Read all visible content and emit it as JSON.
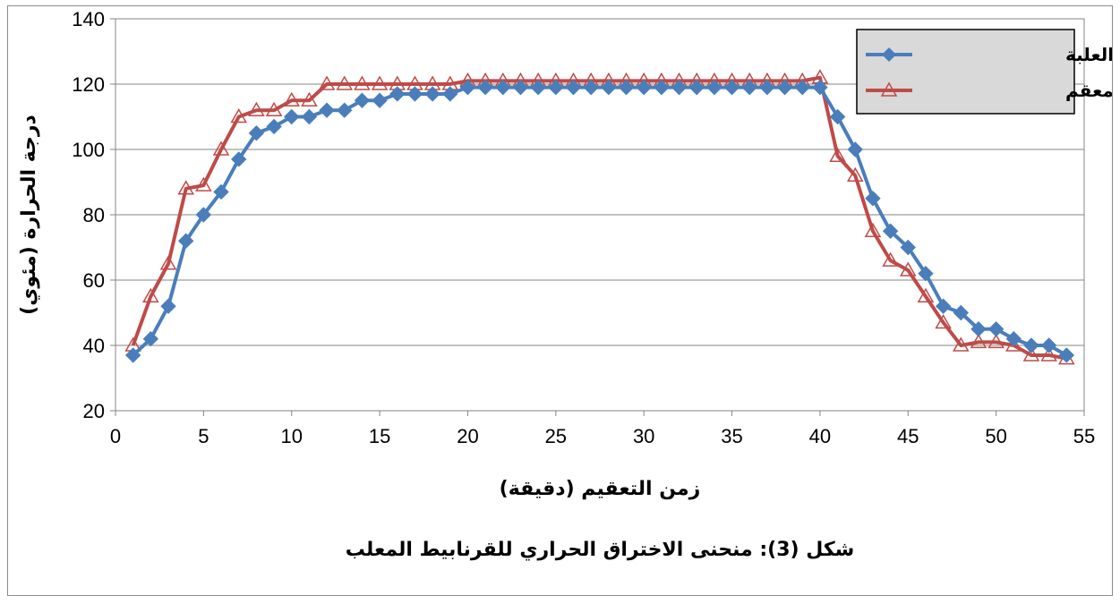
{
  "chart_data": {
    "type": "line",
    "caption": "شكل (3): منحنى الاختراق الحراري للقرنابيط المعلب",
    "xlabel": "زمن التعقيم (دقيقة)",
    "ylabel": "درجة الحرارة (مئوي)",
    "xlim": [
      0,
      55
    ],
    "ylim": [
      20,
      140
    ],
    "x_ticks": [
      0,
      5,
      10,
      15,
      20,
      25,
      30,
      35,
      40,
      45,
      50,
      55
    ],
    "y_ticks": [
      20,
      40,
      60,
      80,
      100,
      120,
      140
    ],
    "grid": "horizontal",
    "legend_position": "top-right",
    "x": [
      1,
      2,
      3,
      4,
      5,
      6,
      7,
      8,
      9,
      10,
      11,
      12,
      13,
      14,
      15,
      16,
      17,
      18,
      19,
      20,
      21,
      22,
      23,
      24,
      25,
      26,
      27,
      28,
      29,
      30,
      31,
      32,
      33,
      34,
      35,
      36,
      37,
      38,
      39,
      40,
      41,
      42,
      43,
      44,
      45,
      46,
      47,
      48,
      49,
      50,
      51,
      52,
      53,
      54
    ],
    "series": [
      {
        "name": "داخل العلبة",
        "color": "#4a7ebb",
        "marker": "diamond",
        "values": [
          37,
          42,
          52,
          72,
          80,
          87,
          97,
          105,
          107,
          110,
          110,
          112,
          112,
          115,
          115,
          117,
          117,
          117,
          117,
          119,
          119,
          119,
          119,
          119,
          119,
          119,
          119,
          119,
          119,
          119,
          119,
          119,
          119,
          119,
          119,
          119,
          119,
          119,
          119,
          119,
          110,
          100,
          85,
          75,
          70,
          62,
          52,
          50,
          45,
          45,
          42,
          40,
          40,
          37
        ]
      },
      {
        "name": "المعقم",
        "color": "#be4b48",
        "marker": "triangle",
        "values": [
          40,
          55,
          65,
          88,
          89,
          100,
          110,
          112,
          112,
          115,
          115,
          120,
          120,
          120,
          120,
          120,
          120,
          120,
          120,
          121,
          121,
          121,
          121,
          121,
          121,
          121,
          121,
          121,
          121,
          121,
          121,
          121,
          121,
          121,
          121,
          121,
          121,
          121,
          121,
          122,
          98,
          92,
          75,
          66,
          63,
          55,
          47,
          40,
          41,
          41,
          40,
          37,
          37,
          36
        ]
      }
    ]
  }
}
